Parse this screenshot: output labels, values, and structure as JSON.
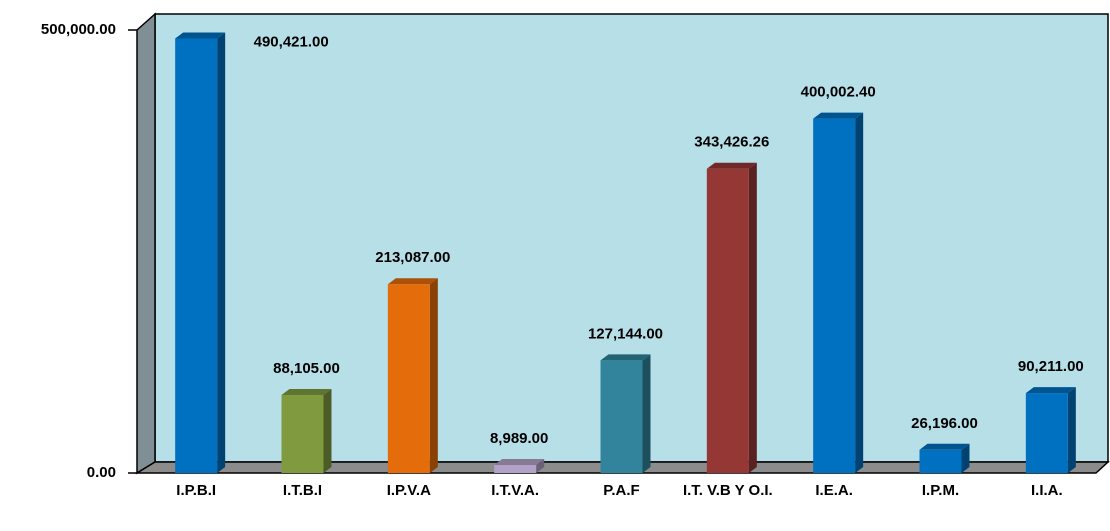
{
  "chart_data": {
    "type": "bar",
    "categories": [
      "I.P.B.I",
      "I.T.B.I",
      "I.P.V.A",
      "I.T.V.A.",
      "P.A.F",
      "I.T. V.B Y O.I.",
      "I.E.A.",
      "I.P.M.",
      "I.I.A."
    ],
    "values": [
      490421,
      88105,
      213087,
      8989,
      127144,
      343426.26,
      400002.4,
      26196,
      90211
    ],
    "value_labels": [
      "490,421.00",
      "88,105.00",
      "213,087.00",
      "8,989.00",
      "127,144.00",
      "343,426.26",
      "400,002.40",
      "26,196.00",
      "90,211.00"
    ],
    "colors": [
      "#0070c0",
      "#7f9a3f",
      "#e46c0a",
      "#b3a2c7",
      "#31849b",
      "#953735",
      "#0070c0",
      "#0070c0",
      "#0070c0"
    ],
    "ylim": [
      0,
      500000
    ],
    "yticks": [
      {
        "value": 0,
        "label": "0.00"
      },
      {
        "value": 500000,
        "label": "500,000.00"
      }
    ]
  }
}
